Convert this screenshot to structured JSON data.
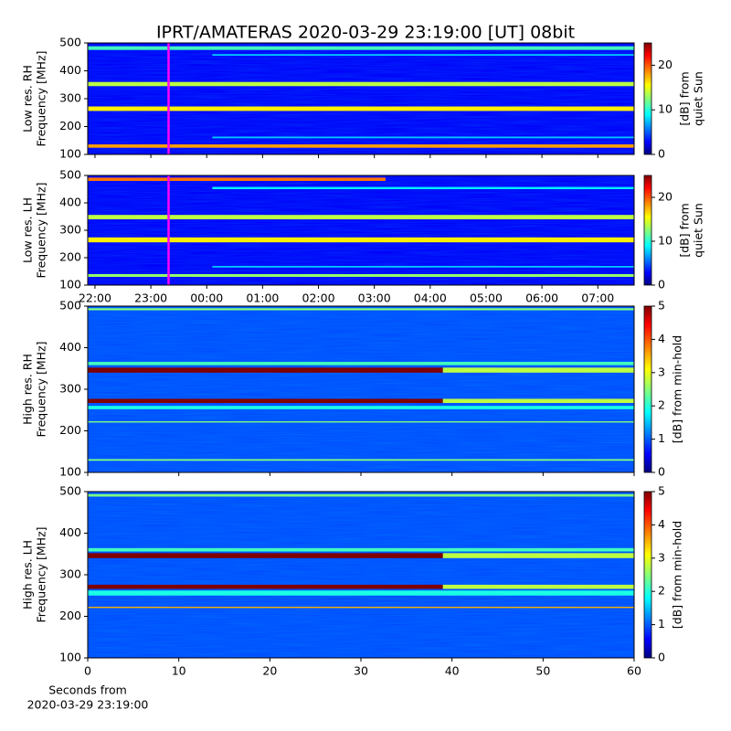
{
  "chart_data": {
    "type": "heatmap",
    "title": "IPRT/AMATERAS 2020-03-29 23:19:00 [UT]   08bit",
    "groups": [
      {
        "xlim": [
          21.87,
          31.65
        ],
        "xticks": [
          {
            "value": 22,
            "label": "22:00"
          },
          {
            "value": 23,
            "label": "23:00"
          },
          {
            "value": 24,
            "label": "00:00"
          },
          {
            "value": 25,
            "label": "01:00"
          },
          {
            "value": 26,
            "label": "02:00"
          },
          {
            "value": 27,
            "label": "03:00"
          },
          {
            "value": 28,
            "label": "04:00"
          },
          {
            "value": 29,
            "label": "05:00"
          },
          {
            "value": 30,
            "label": "06:00"
          },
          {
            "value": 31,
            "label": "07:00"
          }
        ],
        "marker": {
          "value": 23.317,
          "color": "#ff00ff"
        },
        "panels": [
          {
            "ylabel": [
              "Low res. RH",
              "Frequency [MHz]"
            ],
            "ylim": [
              100,
              500
            ],
            "yticks": [
              100,
              200,
              300,
              400,
              500
            ],
            "clabel": [
              "[dB] from",
              "quiet Sun"
            ],
            "clim": [
              0,
              25
            ],
            "cticks": [
              0,
              10,
              20
            ],
            "background": 3,
            "bands": [
              {
                "lo": 475,
                "hi": 488,
                "value": 11,
                "x": [
                  21.87,
                  31.65
                ]
              },
              {
                "lo": 454,
                "hi": 460,
                "value": 8,
                "x": [
                  24.1,
                  31.65
                ]
              },
              {
                "lo": 345,
                "hi": 360,
                "value": 14,
                "x": [
                  21.87,
                  31.65
                ]
              },
              {
                "lo": 256,
                "hi": 272,
                "value": 16,
                "x": [
                  21.87,
                  31.65
                ]
              },
              {
                "lo": 158,
                "hi": 164,
                "value": 8,
                "x": [
                  24.1,
                  31.65
                ]
              },
              {
                "lo": 124,
                "hi": 136,
                "value": 18,
                "x": [
                  21.87,
                  31.65
                ]
              }
            ]
          },
          {
            "ylabel": [
              "Low res. LH",
              "Frequency [MHz]"
            ],
            "ylim": [
              100,
              500
            ],
            "yticks": [
              100,
              200,
              300,
              400,
              500
            ],
            "clabel": [
              "[dB] from",
              "quiet Sun"
            ],
            "clim": [
              0,
              25
            ],
            "cticks": [
              0,
              10,
              20
            ],
            "background": 3,
            "bands": [
              {
                "lo": 480,
                "hi": 492,
                "value": 19,
                "x": [
                  21.87,
                  27.2
                ]
              },
              {
                "lo": 450,
                "hi": 458,
                "value": 9,
                "x": [
                  24.1,
                  31.65
                ]
              },
              {
                "lo": 340,
                "hi": 356,
                "value": 14,
                "x": [
                  21.87,
                  31.65
                ]
              },
              {
                "lo": 256,
                "hi": 274,
                "value": 16,
                "x": [
                  21.87,
                  31.65
                ]
              },
              {
                "lo": 164,
                "hi": 170,
                "value": 8,
                "x": [
                  24.1,
                  31.65
                ]
              },
              {
                "lo": 130,
                "hi": 140,
                "value": 13,
                "x": [
                  21.87,
                  31.65
                ]
              }
            ]
          }
        ]
      },
      {
        "xlim": [
          0,
          60
        ],
        "xticks": [
          0,
          10,
          20,
          30,
          40,
          50,
          60
        ],
        "xlabel": [
          "Seconds from",
          "2020-03-29 23:19:00"
        ],
        "panels": [
          {
            "ylabel": [
              "High res. RH",
              "Frequency [MHz]"
            ],
            "ylim": [
              100,
              500
            ],
            "yticks": [
              100,
              200,
              300,
              400,
              500
            ],
            "clabel": [
              "[dB] from min-hold"
            ],
            "clim": [
              0,
              5
            ],
            "cticks": [
              0,
              1,
              2,
              3,
              4,
              5
            ],
            "background": 1,
            "bands": [
              {
                "lo": 490,
                "hi": 495,
                "value": 2.5,
                "x": [
                  0,
                  60
                ]
              },
              {
                "lo": 358,
                "hi": 366,
                "value": 2.2,
                "x": [
                  0,
                  60
                ]
              },
              {
                "lo": 340,
                "hi": 352,
                "value": 5,
                "x": [
                  0,
                  39
                ]
              },
              {
                "lo": 340,
                "hi": 352,
                "value": 2.8,
                "x": [
                  39,
                  60
                ]
              },
              {
                "lo": 267,
                "hi": 277,
                "value": 5,
                "x": [
                  0,
                  39
                ]
              },
              {
                "lo": 267,
                "hi": 277,
                "value": 2.8,
                "x": [
                  39,
                  60
                ]
              },
              {
                "lo": 252,
                "hi": 260,
                "value": 2,
                "x": [
                  0,
                  60
                ]
              },
              {
                "lo": 220,
                "hi": 223,
                "value": 2.5,
                "x": [
                  0,
                  60
                ]
              },
              {
                "lo": 128,
                "hi": 132,
                "value": 2.5,
                "x": [
                  0,
                  60
                ]
              }
            ]
          },
          {
            "ylabel": [
              "High res. LH",
              "Frequency [MHz]"
            ],
            "ylim": [
              100,
              500
            ],
            "yticks": [
              100,
              200,
              300,
              400,
              500
            ],
            "clabel": [
              "[dB] from min-hold"
            ],
            "clim": [
              0,
              5
            ],
            "cticks": [
              0,
              1,
              2,
              3,
              4,
              5
            ],
            "background": 1,
            "bands": [
              {
                "lo": 488,
                "hi": 494,
                "value": 2.5,
                "x": [
                  0,
                  60
                ]
              },
              {
                "lo": 356,
                "hi": 364,
                "value": 2.2,
                "x": [
                  0,
                  60
                ]
              },
              {
                "lo": 340,
                "hi": 352,
                "value": 5,
                "x": [
                  0,
                  39
                ]
              },
              {
                "lo": 340,
                "hi": 352,
                "value": 2.8,
                "x": [
                  39,
                  60
                ]
              },
              {
                "lo": 266,
                "hi": 276,
                "value": 5,
                "x": [
                  0,
                  39
                ]
              },
              {
                "lo": 266,
                "hi": 276,
                "value": 2.8,
                "x": [
                  39,
                  60
                ]
              },
              {
                "lo": 250,
                "hi": 262,
                "value": 2,
                "x": [
                  0,
                  60
                ]
              },
              {
                "lo": 220,
                "hi": 223,
                "value": 3.5,
                "x": [
                  0,
                  60
                ]
              }
            ]
          }
        ]
      }
    ]
  }
}
